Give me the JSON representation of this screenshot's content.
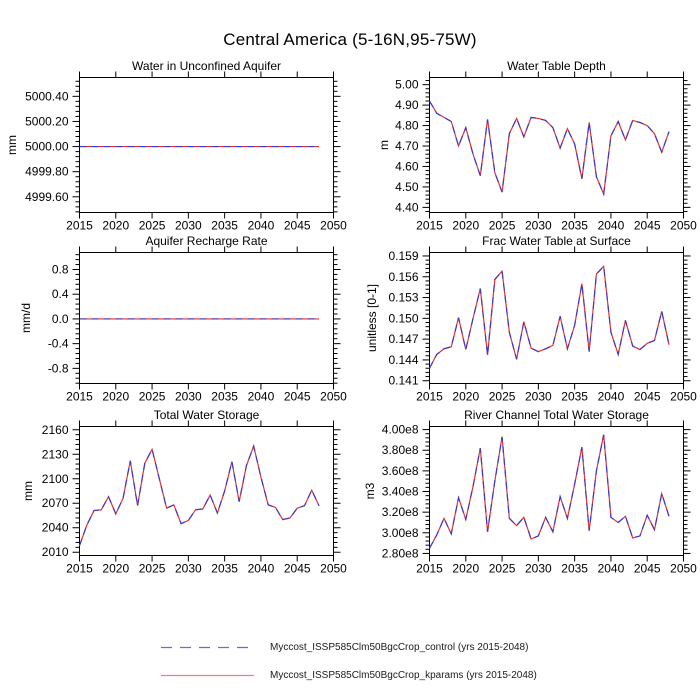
{
  "title": "Central America (5-16N,95-75W)",
  "x_years": {
    "start": 2015,
    "end": 2048,
    "step": 1
  },
  "xlim": [
    2015,
    2050
  ],
  "xticks": [
    2015,
    2020,
    2025,
    2030,
    2035,
    2040,
    2045,
    2050
  ],
  "series": [
    {
      "name": "Myccost_ISSP585Clm50BgcCrop_control",
      "style": "dashed",
      "color": "#3a3acb"
    },
    {
      "name": "Myccost_ISSP585Clm50BgcCrop_kparams",
      "style": "solid",
      "color": "#e63232"
    }
  ],
  "series_note": "Both experiments produce visually identical curves in every panel; the dashed blue control line overlays the solid red kparams line exactly.",
  "legend": {
    "entries": [
      {
        "label": "Myccost_ISSP585Clm50BgcCrop_control (yrs 2015-2048)",
        "color": "#6a6ad9",
        "style": "dashed"
      },
      {
        "label": "Myccost_ISSP585Clm50BgcCrop_kparams (yrs 2015-2048)",
        "color": "#ef8080",
        "style": "solid"
      }
    ]
  },
  "chart_data": [
    {
      "type": "line",
      "title": "Water in Unconfined Aquifer",
      "ylabel": "mm",
      "ylim": [
        4999.475,
        5000.55
      ],
      "yticks": [
        4999.6,
        4999.8,
        5000.0,
        5000.2,
        5000.4
      ],
      "ytick_labels": [
        "4999.60",
        "4999.80",
        "5000.00",
        "5000.20",
        "5000.40"
      ],
      "values": [
        5000,
        5000,
        5000,
        5000,
        5000,
        5000,
        5000,
        5000,
        5000,
        5000,
        5000,
        5000,
        5000,
        5000,
        5000,
        5000,
        5000,
        5000,
        5000,
        5000,
        5000,
        5000,
        5000,
        5000,
        5000,
        5000,
        5000,
        5000,
        5000,
        5000,
        5000,
        5000,
        5000,
        5000
      ]
    },
    {
      "type": "line",
      "title": "Water Table Depth",
      "ylabel": "m",
      "ylim": [
        4.375,
        5.035
      ],
      "yticks": [
        4.4,
        4.5,
        4.6,
        4.7,
        4.8,
        4.9,
        5.0
      ],
      "ytick_labels": [
        "4.40",
        "4.50",
        "4.60",
        "4.70",
        "4.80",
        "4.90",
        "5.00"
      ],
      "values": [
        4.92,
        4.86,
        4.84,
        4.82,
        4.7,
        4.79,
        4.66,
        4.555,
        4.83,
        4.57,
        4.475,
        4.76,
        4.835,
        4.745,
        4.84,
        4.835,
        4.825,
        4.79,
        4.69,
        4.785,
        4.71,
        4.54,
        4.815,
        4.55,
        4.465,
        4.75,
        4.82,
        4.73,
        4.825,
        4.815,
        4.8,
        4.76,
        4.67,
        4.77
      ]
    },
    {
      "type": "line",
      "title": "Aquifer Recharge Rate",
      "ylabel": "mm/d",
      "ylim": [
        -1.045,
        1.075
      ],
      "yticks": [
        -0.8,
        -0.4,
        0.0,
        0.4,
        0.8
      ],
      "ytick_labels": [
        "-0.8",
        "-0.4",
        "0.0",
        "0.4",
        "0.8"
      ],
      "values": [
        0,
        0,
        0,
        0,
        0,
        0,
        0,
        0,
        0,
        0,
        0,
        0,
        0,
        0,
        0,
        0,
        0,
        0,
        0,
        0,
        0,
        0,
        0,
        0,
        0,
        0,
        0,
        0,
        0,
        0,
        0,
        0,
        0,
        0
      ]
    },
    {
      "type": "line",
      "title": "Frac Water Table at Surface",
      "ylabel": "unitless [0-1]",
      "ylim": [
        0.1406,
        0.1595
      ],
      "yticks": [
        0.141,
        0.144,
        0.147,
        0.15,
        0.153,
        0.156,
        0.159
      ],
      "ytick_labels": [
        "0.141",
        "0.144",
        "0.147",
        "0.150",
        "0.153",
        "0.156",
        "0.159"
      ],
      "values": [
        0.1428,
        0.1448,
        0.1456,
        0.1459,
        0.1501,
        0.1455,
        0.15,
        0.1543,
        0.1447,
        0.1556,
        0.1568,
        0.148,
        0.1441,
        0.1495,
        0.1457,
        0.1452,
        0.1456,
        0.1461,
        0.1503,
        0.1456,
        0.149,
        0.155,
        0.1452,
        0.1564,
        0.1575,
        0.148,
        0.1448,
        0.1497,
        0.146,
        0.1455,
        0.1464,
        0.1468,
        0.151,
        0.1462
      ]
    },
    {
      "type": "line",
      "title": "Total Water Storage",
      "ylabel": "mm",
      "ylim": [
        2006,
        2164
      ],
      "yticks": [
        2010,
        2040,
        2070,
        2100,
        2130,
        2160
      ],
      "ytick_labels": [
        "2010",
        "2040",
        "2070",
        "2100",
        "2130",
        "2160"
      ],
      "values": [
        2018,
        2043,
        2061,
        2062,
        2078,
        2057,
        2076,
        2122,
        2067,
        2119,
        2136,
        2100,
        2064,
        2068,
        2045,
        2049,
        2062,
        2063,
        2080,
        2058,
        2085,
        2121,
        2072,
        2116,
        2140,
        2102,
        2068,
        2065,
        2050,
        2052,
        2064,
        2067,
        2086,
        2067
      ]
    },
    {
      "type": "line",
      "title": "River Channel Total Water Storage",
      "ylabel": "m3",
      "ylim": [
        278000000.0,
        403000000.0
      ],
      "yticks": [
        280000000.0,
        300000000.0,
        320000000.0,
        340000000.0,
        360000000.0,
        380000000.0,
        400000000.0
      ],
      "ytick_labels": [
        "2.80e8",
        "3.00e8",
        "3.20e8",
        "3.40e8",
        "3.60e8",
        "3.80e8",
        "4.00e8"
      ],
      "values": [
        285000000.0,
        298000000.0,
        314000000.0,
        299000000.0,
        334000000.0,
        313000000.0,
        345000000.0,
        382000000.0,
        301000000.0,
        350000000.0,
        393000000.0,
        314000000.0,
        307000000.0,
        315000000.0,
        294000000.0,
        297000000.0,
        315000000.0,
        301000000.0,
        335000000.0,
        314000000.0,
        347000000.0,
        383000000.0,
        302000000.0,
        360000000.0,
        395000000.0,
        315000000.0,
        310000000.0,
        316000000.0,
        295000000.0,
        297000000.0,
        317000000.0,
        303000000.0,
        338000000.0,
        316000000.0
      ]
    }
  ]
}
